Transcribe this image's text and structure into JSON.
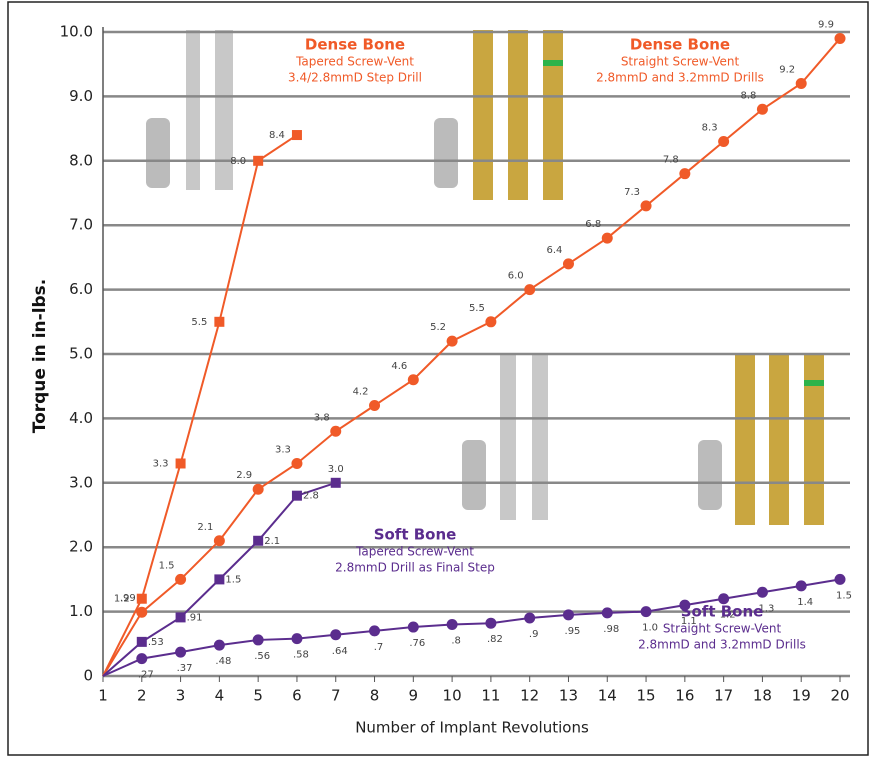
{
  "chart_data": {
    "type": "line",
    "x_label": "Number of Implant Revolutions",
    "y_label": "Torque in in-lbs.",
    "xlim": [
      1,
      20
    ],
    "xticks": [
      1,
      2,
      3,
      4,
      5,
      6,
      7,
      8,
      9,
      10,
      11,
      12,
      13,
      14,
      15,
      16,
      17,
      18,
      19,
      20
    ],
    "ylim": [
      0,
      10
    ],
    "yticks": [
      0,
      {
        "value": 1,
        "label": "1.0"
      },
      {
        "value": 2,
        "label": "2.0"
      },
      {
        "value": 3,
        "label": "3.0"
      },
      {
        "value": 4,
        "label": "4.0"
      },
      {
        "value": 5,
        "label": "5.0"
      },
      {
        "value": 6,
        "label": "6.0"
      },
      {
        "value": 7,
        "label": "7.0"
      },
      {
        "value": 8,
        "label": "8.0"
      },
      {
        "value": 9,
        "label": "9.0"
      },
      {
        "value": 10,
        "label": "10.0"
      }
    ],
    "grid": true,
    "series": [
      {
        "color": "#f05a28",
        "marker": "square",
        "x": [
          1,
          2,
          3,
          4,
          5,
          6
        ],
        "values": [
          0,
          1.2,
          3.3,
          5.5,
          8.0,
          8.4
        ],
        "value_labels": [
          null,
          "1.2",
          "3.3",
          "5.5",
          "8.0",
          "8.4"
        ]
      },
      {
        "color": "#f05a28",
        "marker": "circle",
        "x": [
          1,
          2,
          3,
          4,
          5,
          6,
          7,
          8,
          9,
          10,
          11,
          12,
          13,
          14,
          15,
          16,
          17,
          18,
          19,
          20
        ],
        "values": [
          0,
          0.99,
          1.5,
          2.1,
          2.9,
          3.3,
          3.8,
          4.2,
          4.6,
          5.2,
          5.5,
          6.0,
          6.4,
          6.8,
          7.3,
          7.8,
          8.3,
          8.8,
          9.2,
          9.9
        ],
        "value_labels": [
          null,
          ".99",
          "1.5",
          "2.1",
          "2.9",
          "3.3",
          "3.8",
          "4.2",
          "4.6",
          "5.2",
          "5.5",
          "6.0",
          "6.4",
          "6.8",
          "7.3",
          "7.8",
          "8.3",
          "8.8",
          "9.2",
          "9.9"
        ]
      },
      {
        "color": "#5b2d8e",
        "marker": "square",
        "x": [
          1,
          2,
          3,
          4,
          5,
          6,
          7
        ],
        "values": [
          0,
          0.53,
          0.91,
          1.5,
          2.1,
          2.8,
          3.0
        ],
        "value_labels": [
          null,
          ".53",
          ".91",
          "1.5",
          "2.1",
          "2.8",
          "3.0"
        ]
      },
      {
        "color": "#5b2d8e",
        "marker": "circle",
        "x": [
          1,
          2,
          3,
          4,
          5,
          6,
          7,
          8,
          9,
          10,
          11,
          12,
          13,
          14,
          15,
          16,
          17,
          18,
          19,
          20
        ],
        "values": [
          0,
          0.27,
          0.37,
          0.48,
          0.56,
          0.58,
          0.64,
          0.7,
          0.76,
          0.8,
          0.82,
          0.9,
          0.95,
          0.98,
          1.0,
          1.1,
          1.2,
          1.3,
          1.4,
          1.5
        ],
        "value_labels": [
          null,
          ".27",
          ".37",
          ".48",
          ".56",
          ".58",
          ".64",
          ".7",
          ".76",
          ".8",
          ".82",
          ".9",
          ".95",
          ".98",
          "1.0",
          "1.1",
          "1.2",
          "1.3",
          "1.4",
          "1.5"
        ]
      }
    ],
    "annotations": [
      {
        "heading": "Dense Bone",
        "lines": [
          "Tapered Screw-Vent",
          "3.4/2.8mmD Step Drill"
        ],
        "color": "#f05a28"
      },
      {
        "heading": "Dense Bone",
        "lines": [
          "Straight Screw-Vent",
          "2.8mmD and 3.2mmD Drills"
        ],
        "color": "#f05a28"
      },
      {
        "heading": "Soft Bone",
        "lines": [
          "Tapered Screw-Vent",
          "2.8mmD Drill as Final Step"
        ],
        "color": "#5b2d8e"
      },
      {
        "heading": "Soft Bone",
        "lines": [
          "Straight Screw-Vent",
          "2.8mmD and 3.2mmD Drills"
        ],
        "color": "#5b2d8e"
      }
    ]
  }
}
